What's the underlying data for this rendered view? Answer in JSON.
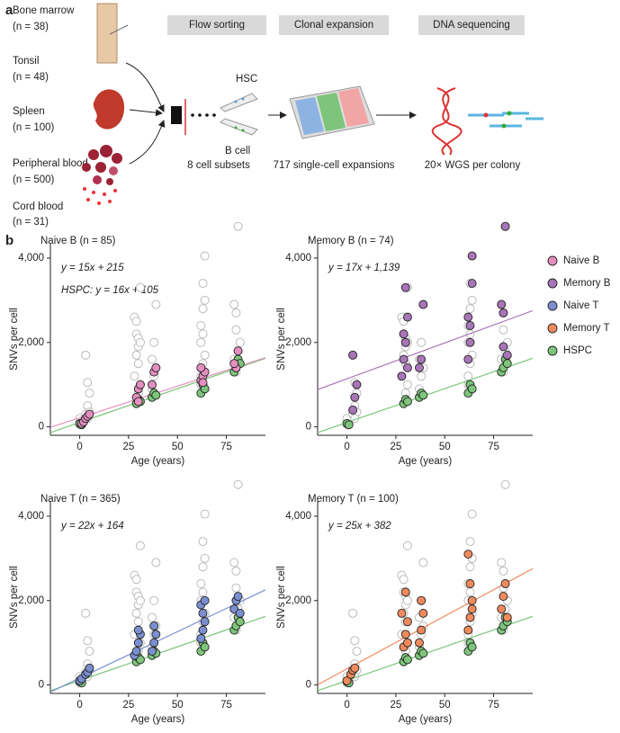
{
  "panel_labels": [
    "a",
    "b"
  ],
  "schematic": {
    "sources": [
      {
        "name": "Bone marrow",
        "n": "(n = 38)"
      },
      {
        "name": "Tonsil",
        "n": "(n = 48)"
      },
      {
        "name": "Spleen",
        "n": "(n = 100)"
      },
      {
        "name": "Peripheral blood",
        "n": "(n = 500)"
      },
      {
        "name": "Cord blood",
        "n": "(n = 31)"
      }
    ],
    "steps": [
      "Flow sorting",
      "Clonal expansion",
      "DNA sequencing"
    ],
    "captions": [
      "8 cell subsets",
      "717 single-cell expansions",
      "20× WGS per colony"
    ],
    "cell_labels": [
      "HSC",
      "B cell"
    ]
  },
  "legend": [
    {
      "name": "Naive B",
      "color": "#e58fc0"
    },
    {
      "name": "Memory B",
      "color": "#a875b8"
    },
    {
      "name": "Naive T",
      "color": "#7b8fd0"
    },
    {
      "name": "Memory T",
      "color": "#f08a5d"
    },
    {
      "name": "HSPC",
      "color": "#7dc57a"
    }
  ],
  "chart_data": [
    {
      "type": "scatter",
      "title": "Naive B (n = 85)",
      "equations": [
        "y = 15x + 215",
        "HSPC: y = 16x + 105"
      ],
      "x_label": "Age (years)",
      "y_label": "SNVs per cell",
      "xlim": [
        -15,
        95
      ],
      "ylim": [
        -200,
        5000
      ],
      "xticks": [
        0,
        25,
        50,
        75
      ],
      "yticks": [
        0,
        {
          "value": 2000,
          "label": "2,000"
        },
        {
          "value": 4000,
          "label": "4,000"
        }
      ],
      "series": [
        {
          "color": "#bbbbbb",
          "hollow": true,
          "x": [
            0,
            0,
            1,
            0,
            3,
            4,
            5,
            4,
            3,
            5,
            4,
            28,
            29,
            30,
            31,
            29,
            30,
            28,
            31,
            30,
            29,
            30,
            31,
            37,
            38,
            39,
            38,
            37,
            39,
            62,
            63,
            64,
            63,
            62,
            64,
            63,
            62,
            64,
            63,
            62,
            79,
            80,
            81,
            80,
            82,
            79,
            81,
            80
          ],
          "values": [
            100,
            50,
            150,
            200,
            300,
            500,
            800,
            1050,
            1700,
            350,
            200,
            2600,
            2200,
            1900,
            3300,
            1700,
            1500,
            1200,
            1000,
            800,
            2500,
            2100,
            2000,
            1600,
            2000,
            2900,
            1200,
            900,
            1400,
            2400,
            2800,
            4050,
            3400,
            2000,
            1700,
            1500,
            1200,
            3000,
            2200,
            1000,
            2900,
            2700,
            4750,
            2300,
            2000,
            1600,
            1800,
            1300
          ]
        },
        {
          "name": "HSPC",
          "color": "#7dc57a",
          "x": [
            0,
            1,
            29,
            30,
            31,
            37,
            38,
            39,
            62,
            63,
            64,
            79,
            80,
            81,
            82
          ],
          "values": [
            80,
            50,
            550,
            650,
            600,
            700,
            800,
            750,
            800,
            1000,
            900,
            1300,
            1400,
            1600,
            1500
          ]
        },
        {
          "name": "Naive B",
          "color": "#e58fc0",
          "x": [
            1,
            2,
            3,
            4,
            5,
            29,
            30,
            31,
            30,
            37,
            38,
            39,
            62,
            63,
            64,
            63,
            62,
            80,
            81,
            79
          ],
          "values": [
            80,
            120,
            200,
            250,
            300,
            700,
            900,
            1000,
            600,
            1000,
            1300,
            1400,
            1100,
            1200,
            1300,
            1050,
            1400,
            1400,
            1800,
            1500
          ]
        }
      ],
      "fits": [
        {
          "slope": 16,
          "intercept": 105,
          "color": "#7dc57a"
        },
        {
          "slope": 15,
          "intercept": 215,
          "color": "#e58fc0"
        }
      ]
    },
    {
      "type": "scatter",
      "title": "Memory B (n = 74)",
      "equations": [
        "y = 17x + 1,139"
      ],
      "x_label": "Age (years)",
      "y_label": "SNVs per cell",
      "xlim": [
        -15,
        95
      ],
      "ylim": [
        -200,
        5000
      ],
      "xticks": [
        0,
        25,
        50,
        75
      ],
      "yticks": [
        0,
        {
          "value": 2000,
          "label": "2,000"
        },
        {
          "value": 4000,
          "label": "4,000"
        }
      ],
      "series": [
        {
          "color": "#bbbbbb",
          "hollow": true,
          "x": [
            0,
            0,
            1,
            0,
            3,
            4,
            5,
            4,
            3,
            5,
            4,
            28,
            29,
            30,
            31,
            29,
            30,
            28,
            31,
            30,
            29,
            30,
            31,
            37,
            38,
            39,
            38,
            37,
            39,
            62,
            63,
            64,
            63,
            62,
            64,
            63,
            62,
            64,
            63,
            62,
            79,
            80,
            81,
            80,
            82,
            79,
            81,
            80
          ],
          "values": [
            100,
            50,
            150,
            200,
            300,
            500,
            800,
            1050,
            1700,
            350,
            200,
            2600,
            2200,
            1900,
            3300,
            1700,
            1500,
            1200,
            1000,
            800,
            2500,
            2100,
            2000,
            1600,
            2000,
            2900,
            1200,
            900,
            1400,
            2400,
            2800,
            4050,
            3400,
            2000,
            1700,
            1500,
            1200,
            3000,
            2200,
            1000,
            2900,
            2700,
            4750,
            2300,
            2000,
            1600,
            1800,
            1300
          ]
        },
        {
          "name": "HSPC",
          "color": "#7dc57a",
          "x": [
            0,
            1,
            29,
            30,
            31,
            37,
            38,
            39,
            62,
            63,
            64,
            79,
            80,
            81,
            82
          ],
          "values": [
            80,
            50,
            550,
            650,
            600,
            700,
            800,
            750,
            800,
            1000,
            900,
            1300,
            1400,
            1600,
            1500
          ]
        },
        {
          "name": "Memory B",
          "color": "#a875b8",
          "x": [
            3,
            4,
            5,
            3,
            28,
            29,
            30,
            31,
            30,
            31,
            29,
            37,
            38,
            39,
            62,
            63,
            64,
            64,
            63,
            62,
            79,
            80,
            81,
            80,
            82
          ],
          "values": [
            400,
            700,
            1000,
            1700,
            1200,
            1600,
            2000,
            2600,
            3300,
            1400,
            2200,
            1400,
            1600,
            2900,
            1600,
            2000,
            3400,
            4050,
            2400,
            2600,
            2900,
            2700,
            4750,
            1900,
            1700
          ]
        }
      ],
      "fits": [
        {
          "slope": 16,
          "intercept": 105,
          "color": "#7dc57a"
        },
        {
          "slope": 17,
          "intercept": 1139,
          "color": "#a875b8"
        }
      ]
    },
    {
      "type": "scatter",
      "title": "Naive T (n = 365)",
      "equations": [
        "y = 22x + 164"
      ],
      "x_label": "Age (years)",
      "y_label": "SNVs per cell",
      "xlim": [
        -15,
        95
      ],
      "ylim": [
        -200,
        5000
      ],
      "xticks": [
        0,
        25,
        50,
        75
      ],
      "yticks": [
        0,
        {
          "value": 2000,
          "label": "2,000"
        },
        {
          "value": 4000,
          "label": "4,000"
        }
      ],
      "series": [
        {
          "color": "#bbbbbb",
          "hollow": true,
          "x": [
            0,
            0,
            1,
            0,
            3,
            4,
            5,
            4,
            3,
            5,
            4,
            28,
            29,
            30,
            31,
            29,
            30,
            28,
            31,
            30,
            29,
            30,
            31,
            37,
            38,
            39,
            38,
            37,
            39,
            62,
            63,
            64,
            63,
            62,
            64,
            63,
            62,
            64,
            63,
            62,
            79,
            80,
            81,
            80,
            82,
            79,
            81,
            80
          ],
          "values": [
            100,
            50,
            150,
            200,
            300,
            500,
            800,
            1050,
            1700,
            350,
            200,
            2600,
            2200,
            1900,
            3300,
            1700,
            1500,
            1200,
            1000,
            800,
            2500,
            2100,
            2000,
            1600,
            2000,
            2900,
            1200,
            900,
            1400,
            2400,
            2800,
            4050,
            3400,
            2000,
            1700,
            1500,
            1200,
            3000,
            2200,
            1000,
            2900,
            2700,
            4750,
            2300,
            2000,
            1600,
            1800,
            1300
          ]
        },
        {
          "name": "HSPC",
          "color": "#7dc57a",
          "x": [
            0,
            1,
            29,
            30,
            31,
            37,
            38,
            39,
            62,
            63,
            64,
            79,
            80,
            81,
            82
          ],
          "values": [
            80,
            50,
            550,
            650,
            600,
            700,
            800,
            750,
            800,
            1000,
            900,
            1300,
            1400,
            1600,
            1500
          ]
        },
        {
          "name": "Naive T",
          "color": "#7b8fd0",
          "x": [
            0,
            1,
            3,
            4,
            5,
            28,
            29,
            30,
            31,
            30,
            37,
            38,
            39,
            38,
            62,
            63,
            64,
            63,
            62,
            64,
            79,
            80,
            81,
            82
          ],
          "values": [
            100,
            150,
            250,
            300,
            400,
            700,
            800,
            1000,
            1200,
            1300,
            800,
            1000,
            1200,
            1400,
            1100,
            1300,
            1500,
            1700,
            1900,
            2000,
            1800,
            2000,
            2100,
            1700
          ]
        }
      ],
      "fits": [
        {
          "slope": 16,
          "intercept": 105,
          "color": "#7dc57a"
        },
        {
          "slope": 22,
          "intercept": 164,
          "color": "#7b8fd0"
        }
      ]
    },
    {
      "type": "scatter",
      "title": "Memory T (n = 100)",
      "equations": [
        "y = 25x + 382"
      ],
      "x_label": "Age (years)",
      "y_label": "SNVs per cell",
      "xlim": [
        -15,
        95
      ],
      "ylim": [
        -200,
        5000
      ],
      "xticks": [
        0,
        25,
        50,
        75
      ],
      "yticks": [
        0,
        {
          "value": 2000,
          "label": "2,000"
        },
        {
          "value": 4000,
          "label": "4,000"
        }
      ],
      "series": [
        {
          "color": "#bbbbbb",
          "hollow": true,
          "x": [
            0,
            0,
            1,
            0,
            3,
            4,
            5,
            4,
            3,
            5,
            4,
            28,
            29,
            30,
            31,
            29,
            30,
            28,
            31,
            30,
            29,
            30,
            31,
            37,
            38,
            39,
            38,
            37,
            39,
            62,
            63,
            64,
            63,
            62,
            64,
            63,
            62,
            64,
            63,
            62,
            79,
            80,
            81,
            80,
            82,
            79,
            81,
            80
          ],
          "values": [
            100,
            50,
            150,
            200,
            300,
            500,
            800,
            1050,
            1700,
            350,
            200,
            2600,
            2200,
            1900,
            3300,
            1700,
            1500,
            1200,
            1000,
            800,
            2500,
            2100,
            2000,
            1600,
            2000,
            2900,
            1200,
            900,
            1400,
            2400,
            2800,
            4050,
            3400,
            2000,
            1700,
            1500,
            1200,
            3000,
            2200,
            1000,
            2900,
            2700,
            4750,
            2300,
            2000,
            1600,
            1800,
            1300
          ]
        },
        {
          "name": "HSPC",
          "color": "#7dc57a",
          "x": [
            0,
            1,
            29,
            30,
            31,
            37,
            38,
            39,
            62,
            63,
            64,
            79,
            80,
            81,
            82
          ],
          "values": [
            80,
            50,
            550,
            650,
            600,
            700,
            800,
            750,
            800,
            1000,
            900,
            1300,
            1400,
            1600,
            1500
          ]
        },
        {
          "name": "Memory T",
          "color": "#f08a5d",
          "x": [
            0,
            2,
            3,
            4,
            29,
            30,
            31,
            30,
            28,
            31,
            37,
            38,
            39,
            38,
            62,
            63,
            64,
            63,
            62,
            64,
            79,
            80,
            81,
            82
          ],
          "values": [
            100,
            250,
            350,
            400,
            900,
            1200,
            1500,
            2200,
            1700,
            1000,
            1000,
            1300,
            1700,
            2000,
            1300,
            1600,
            2000,
            2400,
            3100,
            1800,
            1800,
            2100,
            2400,
            1600
          ]
        }
      ],
      "fits": [
        {
          "slope": 16,
          "intercept": 105,
          "color": "#7dc57a"
        },
        {
          "slope": 25,
          "intercept": 382,
          "color": "#f08a5d"
        }
      ]
    }
  ]
}
